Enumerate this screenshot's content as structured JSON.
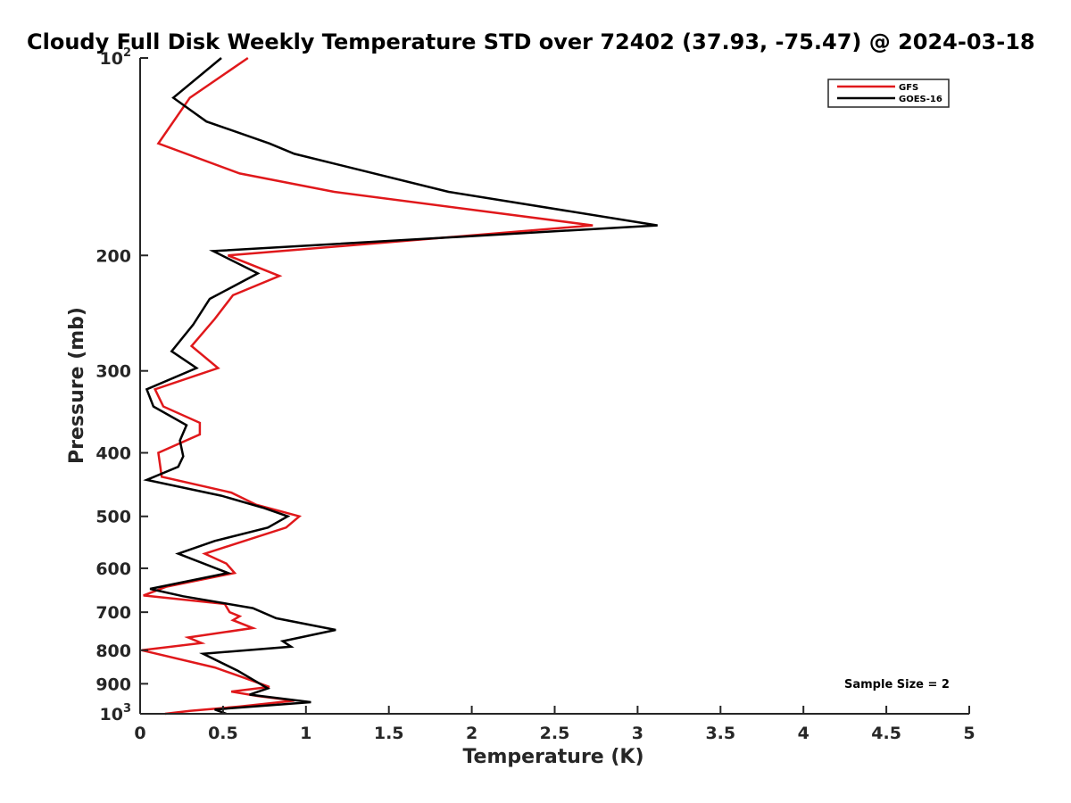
{
  "chart_data": {
    "type": "line",
    "title": "Cloudy Full Disk Weekly Temperature STD over 72402 (37.93, -75.47) @ 2024-03-18",
    "xlabel": "Temperature (K)",
    "ylabel": "Pressure (mb)",
    "xlim": [
      0,
      5
    ],
    "ylim": [
      1000,
      100
    ],
    "y_scale": "log",
    "x_ticks": [
      "0",
      "0.5",
      "1",
      "1.5",
      "2",
      "2.5",
      "3",
      "3.5",
      "4",
      "4.5",
      "5"
    ],
    "y_ticks": [
      {
        "value": 100,
        "base": "10",
        "exp": "2"
      },
      {
        "value": 200,
        "label": "200"
      },
      {
        "value": 300,
        "label": "300"
      },
      {
        "value": 400,
        "label": "400"
      },
      {
        "value": 500,
        "label": "500"
      },
      {
        "value": 600,
        "label": "600"
      },
      {
        "value": 700,
        "label": "700"
      },
      {
        "value": 800,
        "label": "800"
      },
      {
        "value": 900,
        "label": "900"
      },
      {
        "value": 1000,
        "base": "10",
        "exp": "3"
      }
    ],
    "legend_position": "top-right",
    "annotation": "Sample Size = 2",
    "series": [
      {
        "name": "GFS",
        "color": "#e0181b",
        "points": [
          [
            0.65,
            100
          ],
          [
            0.3,
            115
          ],
          [
            0.11,
            135
          ],
          [
            0.6,
            150
          ],
          [
            1.17,
            160
          ],
          [
            2.73,
            180
          ],
          [
            0.53,
            200
          ],
          [
            0.84,
            215
          ],
          [
            0.56,
            230
          ],
          [
            0.45,
            250
          ],
          [
            0.31,
            275
          ],
          [
            0.47,
            297
          ],
          [
            0.09,
            320
          ],
          [
            0.14,
            340
          ],
          [
            0.36,
            360
          ],
          [
            0.36,
            375
          ],
          [
            0.11,
            400
          ],
          [
            0.13,
            435
          ],
          [
            0.55,
            460
          ],
          [
            0.7,
            480
          ],
          [
            0.96,
            500
          ],
          [
            0.88,
            520
          ],
          [
            0.58,
            550
          ],
          [
            0.39,
            570
          ],
          [
            0.52,
            590
          ],
          [
            0.57,
            610
          ],
          [
            0.16,
            640
          ],
          [
            0.02,
            660
          ],
          [
            0.51,
            680
          ],
          [
            0.54,
            700
          ],
          [
            0.6,
            710
          ],
          [
            0.56,
            720
          ],
          [
            0.68,
            740
          ],
          [
            0.29,
            765
          ],
          [
            0.37,
            780
          ],
          [
            0.01,
            800
          ],
          [
            0.45,
            850
          ],
          [
            0.62,
            880
          ],
          [
            0.78,
            910
          ],
          [
            0.55,
            925
          ],
          [
            0.71,
            940
          ],
          [
            0.93,
            955
          ],
          [
            0.6,
            975
          ],
          [
            0.3,
            990
          ],
          [
            0.15,
            1000
          ]
        ]
      },
      {
        "name": "GOES-16",
        "color": "#000000",
        "points": [
          [
            0.49,
            100
          ],
          [
            0.2,
            115
          ],
          [
            0.4,
            125
          ],
          [
            0.78,
            135
          ],
          [
            0.93,
            140
          ],
          [
            1.86,
            160
          ],
          [
            3.12,
            180
          ],
          [
            0.44,
            197
          ],
          [
            0.71,
            213
          ],
          [
            0.42,
            233
          ],
          [
            0.32,
            255
          ],
          [
            0.19,
            280
          ],
          [
            0.34,
            297
          ],
          [
            0.04,
            320
          ],
          [
            0.08,
            340
          ],
          [
            0.28,
            363
          ],
          [
            0.24,
            383
          ],
          [
            0.26,
            405
          ],
          [
            0.23,
            420
          ],
          [
            0.04,
            440
          ],
          [
            0.49,
            465
          ],
          [
            0.74,
            485
          ],
          [
            0.89,
            500
          ],
          [
            0.77,
            520
          ],
          [
            0.45,
            545
          ],
          [
            0.23,
            570
          ],
          [
            0.53,
            610
          ],
          [
            0.06,
            645
          ],
          [
            0.26,
            662
          ],
          [
            0.68,
            690
          ],
          [
            0.82,
            715
          ],
          [
            1.18,
            745
          ],
          [
            0.86,
            775
          ],
          [
            0.91,
            790
          ],
          [
            0.38,
            810
          ],
          [
            0.59,
            860
          ],
          [
            0.69,
            890
          ],
          [
            0.77,
            915
          ],
          [
            0.66,
            935
          ],
          [
            1.03,
            960
          ],
          [
            0.45,
            985
          ],
          [
            0.52,
            1000
          ]
        ]
      }
    ]
  }
}
